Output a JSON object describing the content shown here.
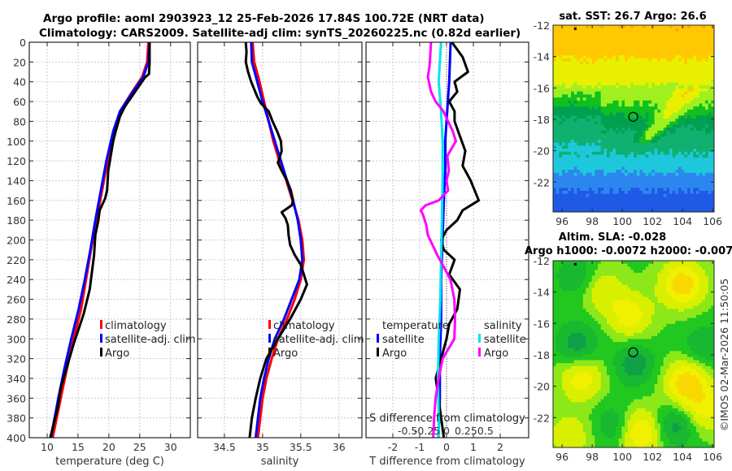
{
  "header": {
    "title_line1": "Argo profile: aoml 2903923_12 25-Feb-2026 17.84S 100.72E (NRT data)",
    "title_line2": "Climatology: CARS2009. Satellite-adj clim: synTS_20260225.nc (0.82d earlier)"
  },
  "copyright": "©IMOS 02-Mar-2026 11:50:05",
  "colors": {
    "climatology": "#ff0000",
    "satellite_adj": "#0000ff",
    "argo": "#000000",
    "salinity_satellite": "#00e5ee",
    "salinity_argo": "#ff00ff",
    "grid": "#c8c8dc"
  },
  "chart_data": [
    {
      "type": "line",
      "name": "temperature-profile",
      "xlabel": "temperature (deg C)",
      "ylabel": "",
      "xlim": [
        7.1,
        33.2
      ],
      "ylim": [
        400,
        0
      ],
      "xticks": [
        10,
        15,
        20,
        25,
        30
      ],
      "yticks": [
        0,
        20,
        40,
        60,
        80,
        100,
        120,
        140,
        160,
        180,
        200,
        220,
        240,
        260,
        280,
        300,
        320,
        340,
        360,
        380,
        400
      ],
      "grid": true,
      "legend": {
        "placement": "center-right",
        "entries": [
          "climatology",
          "satellite-adj. clim",
          "Argo"
        ]
      },
      "series": [
        {
          "name": "climatology",
          "color": "#ff0000",
          "depth": [
            0,
            20,
            35,
            50,
            70,
            90,
            120,
            150,
            180,
            210,
            240,
            270,
            300,
            330,
            360,
            400
          ],
          "values": [
            26.4,
            26.2,
            25.4,
            23.8,
            21.8,
            20.8,
            19.8,
            18.9,
            18.0,
            17.1,
            16.3,
            15.5,
            14.3,
            13.2,
            12.2,
            10.9
          ]
        },
        {
          "name": "satellite-adj. clim",
          "color": "#0000ff",
          "depth": [
            0,
            20,
            35,
            50,
            70,
            90,
            120,
            150,
            180,
            210,
            240,
            270,
            300,
            330,
            360,
            400
          ],
          "values": [
            26.6,
            26.4,
            25.6,
            23.9,
            21.8,
            20.7,
            19.6,
            18.7,
            17.8,
            17.0,
            16.1,
            15.1,
            13.9,
            12.8,
            11.8,
            10.6
          ]
        },
        {
          "name": "Argo",
          "color": "#000000",
          "depth": [
            0,
            20,
            32,
            36,
            45,
            55,
            65,
            75,
            90,
            100,
            115,
            130,
            150,
            158,
            170,
            180,
            195,
            215,
            230,
            250,
            260,
            275,
            290,
            305,
            320,
            335,
            350,
            370,
            400
          ],
          "values": [
            26.6,
            26.6,
            26.5,
            25.8,
            24.8,
            23.7,
            22.6,
            21.8,
            21.1,
            20.7,
            20.3,
            19.9,
            19.7,
            19.4,
            18.5,
            18.3,
            17.8,
            17.6,
            17.3,
            16.9,
            16.5,
            15.9,
            15.1,
            14.3,
            13.6,
            12.9,
            12.2,
            11.7,
            10.5
          ]
        }
      ]
    },
    {
      "type": "line",
      "name": "salinity-profile",
      "xlabel": "salinity",
      "ylabel": "",
      "xlim": [
        34.15,
        36.3
      ],
      "ylim": [
        400,
        0
      ],
      "xticks": [
        34.5,
        35,
        35.5,
        36
      ],
      "grid": true,
      "legend": {
        "placement": "center-right",
        "entries": [
          "climatology",
          "satellite-adj. clim",
          "Argo"
        ]
      },
      "series": [
        {
          "name": "climatology",
          "color": "#ff0000",
          "depth": [
            0,
            20,
            40,
            60,
            80,
            100,
            120,
            140,
            160,
            180,
            200,
            220,
            240,
            260,
            280,
            300,
            320,
            340,
            360,
            380,
            400
          ],
          "values": [
            34.87,
            34.89,
            34.96,
            35.02,
            35.08,
            35.14,
            35.22,
            35.31,
            35.39,
            35.47,
            35.52,
            35.54,
            35.5,
            35.42,
            35.32,
            35.2,
            35.12,
            35.05,
            35.0,
            34.97,
            34.94
          ]
        },
        {
          "name": "satellite-adj. clim",
          "color": "#0000ff",
          "depth": [
            0,
            20,
            40,
            60,
            80,
            100,
            120,
            140,
            160,
            180,
            200,
            220,
            240,
            260,
            280,
            300,
            320,
            340,
            360,
            380,
            400
          ],
          "values": [
            34.85,
            34.86,
            34.93,
            35.0,
            35.08,
            35.16,
            35.24,
            35.32,
            35.4,
            35.46,
            35.5,
            35.52,
            35.48,
            35.38,
            35.28,
            35.16,
            35.08,
            35.02,
            34.97,
            34.94,
            34.91
          ]
        },
        {
          "name": "Argo",
          "color": "#000000",
          "depth": [
            0,
            10,
            20,
            30,
            40,
            55,
            62,
            70,
            80,
            90,
            100,
            110,
            122,
            130,
            140,
            150,
            160,
            165,
            172,
            178,
            185,
            195,
            205,
            215,
            225,
            235,
            245,
            260,
            280,
            300,
            320,
            340,
            360,
            380,
            400
          ],
          "values": [
            34.78,
            34.79,
            34.78,
            34.81,
            34.85,
            34.93,
            34.98,
            35.08,
            35.13,
            35.19,
            35.24,
            35.25,
            35.2,
            35.25,
            35.32,
            35.37,
            35.4,
            35.38,
            35.25,
            35.3,
            35.33,
            35.34,
            35.36,
            35.42,
            35.5,
            35.54,
            35.58,
            35.5,
            35.36,
            35.2,
            35.05,
            34.97,
            34.91,
            34.86,
            34.83
          ]
        }
      ]
    },
    {
      "type": "line",
      "name": "difference-profile",
      "xlabel": "T difference from climatology",
      "xlabel_top": "S difference from climatology",
      "ylabel": "",
      "xlim": [
        -3.0,
        3.06
      ],
      "ylim": [
        400,
        0
      ],
      "xticks": [
        -2,
        -1,
        0,
        1,
        2
      ],
      "xticks_salinity": [
        "-0.5",
        "-0.25",
        "0",
        "0.25",
        "0.5"
      ],
      "xticks_salinity_values": [
        -0.5,
        -0.25,
        0,
        0.25,
        0.5
      ],
      "grid": true,
      "legend": {
        "placement": "bottom-center",
        "groups": [
          {
            "title": "temperature",
            "entries": [
              "satellite",
              "Argo"
            ]
          },
          {
            "title": "salinity",
            "entries": [
              "satellite",
              "Argo"
            ]
          }
        ]
      },
      "series": [
        {
          "name": "temperature satellite",
          "color": "#0000ff",
          "depth": [
            0,
            40,
            80,
            100,
            130,
            160,
            200,
            240,
            280,
            320,
            360,
            400
          ],
          "values": [
            0.15,
            0.1,
            0.0,
            -0.05,
            -0.05,
            -0.1,
            -0.15,
            -0.2,
            -0.2,
            -0.25,
            -0.25,
            -0.3
          ]
        },
        {
          "name": "temperature Argo",
          "color": "#000000",
          "depth": [
            0,
            15,
            30,
            40,
            50,
            60,
            70,
            80,
            95,
            110,
            125,
            140,
            160,
            170,
            180,
            190,
            200,
            210,
            220,
            235,
            250,
            270,
            285,
            300,
            320,
            340,
            360,
            380,
            400
          ],
          "values": [
            0.2,
            0.6,
            0.8,
            0.3,
            0.4,
            0.1,
            0.3,
            0.3,
            0.5,
            0.7,
            0.6,
            0.9,
            1.2,
            0.6,
            0.4,
            0.0,
            -0.2,
            -0.1,
            0.3,
            0.1,
            0.5,
            0.4,
            0.1,
            0.0,
            -0.2,
            -0.4,
            -0.3,
            -0.2,
            -0.1
          ]
        },
        {
          "name": "salinity satellite",
          "color": "#00e5ee",
          "depth": [
            0,
            40,
            70,
            100,
            140,
            180,
            220,
            260,
            300,
            340,
            380,
            400
          ],
          "values": [
            -0.07,
            -0.1,
            -0.07,
            -0.05,
            -0.05,
            -0.06,
            -0.07,
            -0.08,
            -0.1,
            -0.11,
            -0.1,
            -0.1
          ]
        },
        {
          "name": "salinity Argo",
          "color": "#ff00ff",
          "depth": [
            0,
            15,
            25,
            35,
            50,
            60,
            70,
            80,
            90,
            100,
            115,
            130,
            140,
            150,
            160,
            165,
            170,
            175,
            185,
            195,
            215,
            225,
            240,
            260,
            280,
            300,
            320,
            340,
            360,
            380,
            400
          ],
          "values": [
            -0.2,
            -0.21,
            -0.22,
            -0.24,
            -0.2,
            -0.14,
            -0.04,
            0.02,
            0.08,
            0.12,
            0.01,
            0.03,
            0.0,
            0.02,
            -0.1,
            -0.27,
            -0.33,
            -0.3,
            -0.26,
            -0.24,
            -0.12,
            -0.05,
            0.05,
            0.1,
            0.11,
            0.1,
            -0.05,
            -0.1,
            -0.14,
            -0.16,
            -0.17
          ]
        }
      ]
    },
    {
      "type": "heatmap",
      "name": "sst-map",
      "title": "sat. SST: 26.7 Argo: 26.6",
      "xlim": [
        95.4,
        106.1
      ],
      "ylim": [
        -23.9,
        -12.0
      ],
      "xticks": [
        96,
        98,
        100,
        102,
        104,
        106
      ],
      "yticks": [
        -12,
        -14,
        -16,
        -18,
        -20,
        -22
      ],
      "marker": {
        "lon": 100.72,
        "lat": -17.84
      }
    },
    {
      "type": "heatmap",
      "name": "sla-map",
      "title": "Altim. SLA: -0.028",
      "subtitle": "Argo h1000: -0.0072 h2000: -0.007",
      "xlim": [
        95.4,
        106.1
      ],
      "ylim": [
        -23.9,
        -12.0
      ],
      "xticks": [
        96,
        98,
        100,
        102,
        104,
        106
      ],
      "yticks": [
        -12,
        -14,
        -16,
        -18,
        -20,
        -22
      ],
      "marker": {
        "lon": 100.72,
        "lat": -17.84
      }
    }
  ]
}
